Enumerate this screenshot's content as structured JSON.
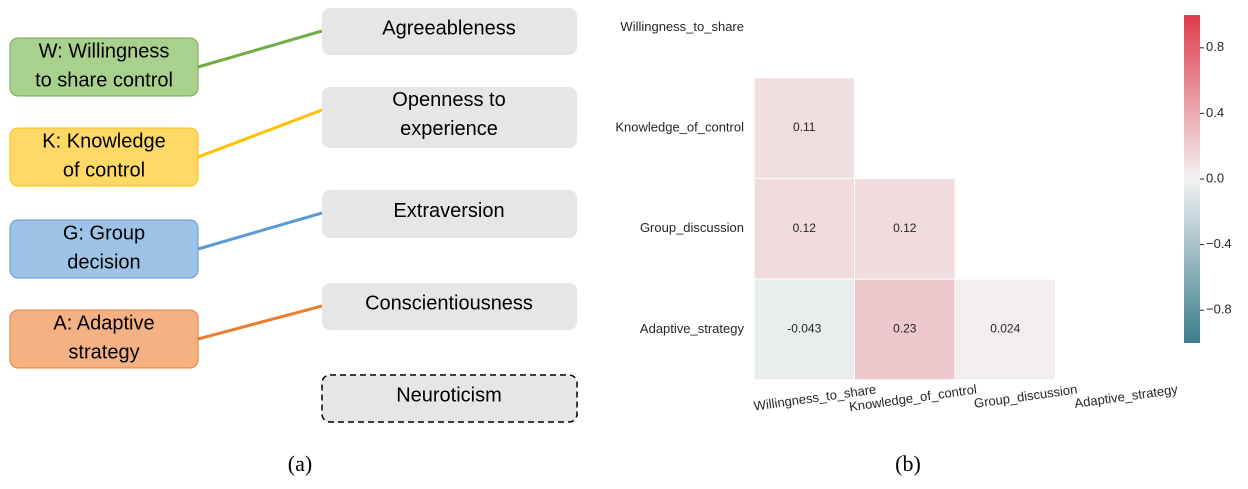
{
  "diagram": {
    "left_nodes": [
      {
        "lines": [
          "W: Willingness",
          "to share control"
        ],
        "fill": "#a9d18e",
        "stroke": "#70ad47"
      },
      {
        "lines": [
          "K: Knowledge",
          "of control"
        ],
        "fill": "#ffd966",
        "stroke": "#ffc000"
      },
      {
        "lines": [
          "G: Group",
          "decision"
        ],
        "fill": "#9dc3e6",
        "stroke": "#5b9bd5"
      },
      {
        "lines": [
          "A: Adaptive",
          "strategy"
        ],
        "fill": "#f4b183",
        "stroke": "#ed7d31"
      }
    ],
    "right_nodes": [
      {
        "lines": [
          "Agreeableness"
        ]
      },
      {
        "lines": [
          "Openness to",
          "experience"
        ]
      },
      {
        "lines": [
          "Extraversion"
        ]
      },
      {
        "lines": [
          "Conscientiousness"
        ]
      },
      {
        "lines": [
          "Neuroticism"
        ],
        "dashed": true
      }
    ],
    "edges": [
      {
        "from": 0,
        "to": 0,
        "color": "#70ad47"
      },
      {
        "from": 1,
        "to": 1,
        "color": "#ffc000"
      },
      {
        "from": 2,
        "to": 2,
        "color": "#5b9bd5"
      },
      {
        "from": 3,
        "to": 3,
        "color": "#ed7d31"
      }
    ],
    "label": "(a)"
  },
  "chart_data": {
    "type": "heatmap",
    "label": "(b)",
    "rows": [
      "Willingness_to_share",
      "Knowledge_of_control",
      "Group_discussion",
      "Adaptive_strategy"
    ],
    "categories": [
      "Willingness_to_share",
      "Knowledge_of_control",
      "Group_discussion",
      "Adaptive_strategy"
    ],
    "values": [
      [
        null,
        null,
        null,
        null
      ],
      [
        0.11,
        null,
        null,
        null
      ],
      [
        0.12,
        0.12,
        null,
        null
      ],
      [
        -0.043,
        0.23,
        0.024,
        null
      ]
    ],
    "colormap": [
      "#3b7d8c",
      "#f2f2f2",
      "#e03c4c"
    ],
    "clim": [
      -1,
      1
    ],
    "cticks": [
      {
        "value": -0.8,
        "label": "−0.8"
      },
      {
        "value": -0.4,
        "label": "−0.4"
      },
      {
        "value": 0,
        "label": "0.0"
      },
      0.4,
      0.8
    ]
  }
}
